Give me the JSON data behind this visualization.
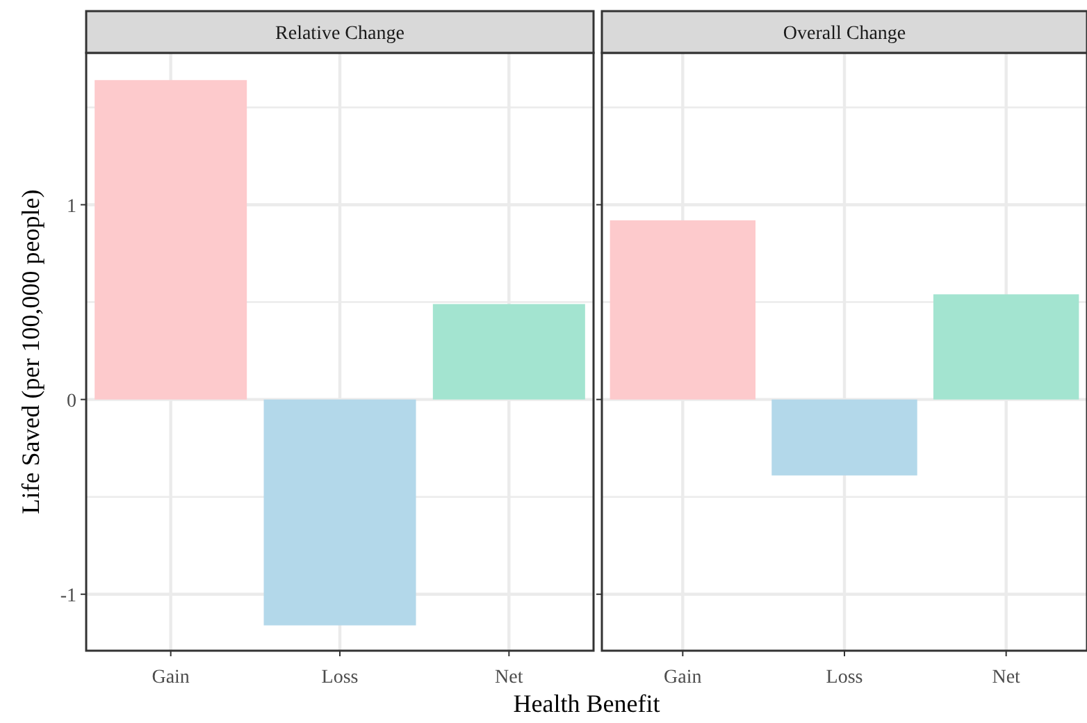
{
  "chart_data": [
    {
      "type": "bar",
      "title": "Relative Change",
      "xlabel": "Health Benefit",
      "ylabel": "Life Saved (per 100,000 people)",
      "categories": [
        "Gain",
        "Loss",
        "Net"
      ],
      "values": [
        1.64,
        -1.16,
        0.49
      ],
      "colors": [
        "#fdcacc",
        "#b3d8ea",
        "#a3e4d0"
      ],
      "ylim": [
        -1.29,
        1.78
      ],
      "yticks": [
        -1,
        {
          "value": -0.5,
          "label": null
        },
        0,
        {
          "value": 0.5,
          "label": null
        },
        1,
        {
          "value": 1.5,
          "label": null
        }
      ],
      "grid": true
    },
    {
      "type": "bar",
      "title": "Overall Change",
      "categories": [
        "Gain",
        "Loss",
        "Net"
      ],
      "values": [
        0.92,
        -0.39,
        0.54
      ],
      "colors": [
        "#fdcacc",
        "#b3d8ea",
        "#a3e4d0"
      ],
      "ylim": [
        -1.29,
        1.78
      ],
      "yticks": [
        -1,
        {
          "value": -0.5,
          "label": null
        },
        0,
        {
          "value": 0.5,
          "label": null
        },
        1,
        {
          "value": 1.5,
          "label": null
        }
      ],
      "grid": true,
      "tick_labels": "x"
    }
  ]
}
